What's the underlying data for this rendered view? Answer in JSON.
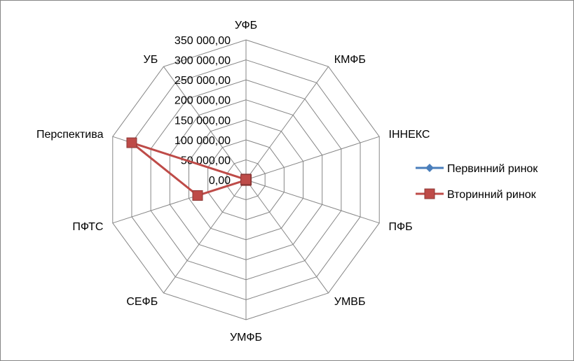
{
  "chart_data": {
    "type": "radar",
    "categories": [
      "УФБ",
      "КМФБ",
      "ІННЕКС",
      "ПФБ",
      "УМВБ",
      "УМФБ",
      "СЕФБ",
      "ПФТС",
      "Перспектива",
      "УБ"
    ],
    "radial_axis": {
      "min": 0,
      "max": 350000,
      "step": 50000,
      "tick_labels": [
        "0,00",
        "50 000,00",
        "100 000,00",
        "150 000,00",
        "200 000,00",
        "250 000,00",
        "300 000,00",
        "350 000,00"
      ]
    },
    "grid": true,
    "legend_position": "right",
    "series": [
      {
        "name": "Первинний ринок",
        "color": "#4a7ebb",
        "marker": "diamond",
        "values": [
          0,
          0,
          0,
          0,
          0,
          0,
          0,
          0,
          0,
          0
        ]
      },
      {
        "name": "Вторинний ринок",
        "color": "#be4b48",
        "marker": "square",
        "values": [
          2000,
          1000,
          1000,
          1000,
          1000,
          2000,
          1000,
          127000,
          300000,
          1000
        ]
      }
    ]
  }
}
